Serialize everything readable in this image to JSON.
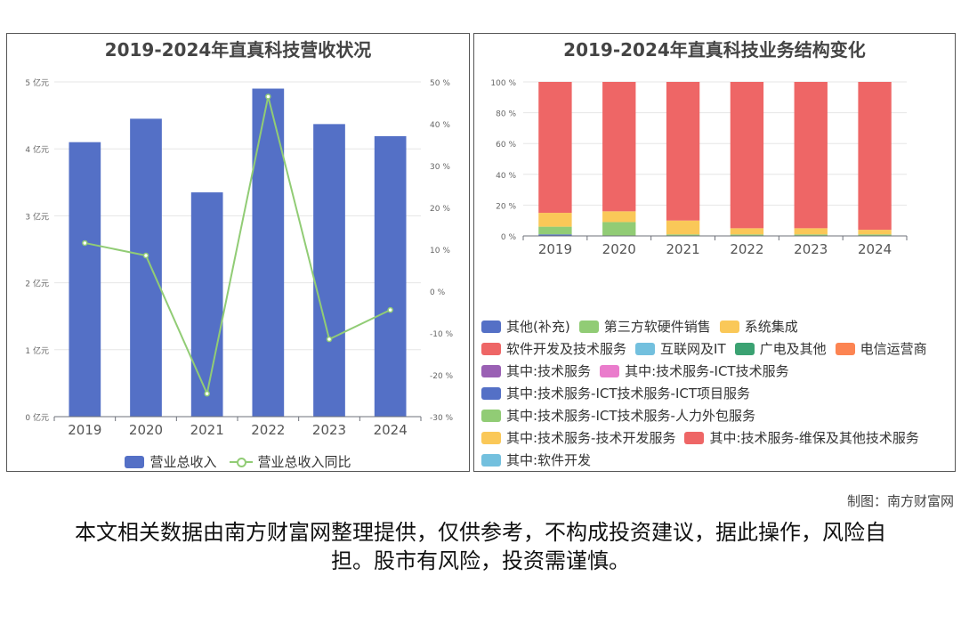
{
  "chart_data": [
    {
      "type": "bar",
      "title": "2019-2024年直真科技营收状况",
      "categories": [
        "2019",
        "2020",
        "2021",
        "2022",
        "2023",
        "2024"
      ],
      "series": [
        {
          "name": "营业总收入",
          "type": "bar",
          "color": "#5470c6",
          "values": [
            4.1,
            4.45,
            3.35,
            4.9,
            4.37,
            4.19
          ]
        },
        {
          "name": "营业总收入同比",
          "type": "line",
          "color": "#91cc75",
          "axis": "right",
          "values": [
            11.5,
            8.5,
            -24.5,
            46.5,
            -11.5,
            -4.5
          ]
        }
      ],
      "ylim_left": [
        0,
        5
      ],
      "yticks_left": [
        0,
        1,
        2,
        3,
        4,
        5
      ],
      "ytick_labels_left": [
        "0 亿元",
        "1 亿元",
        "2 亿元",
        "3 亿元",
        "4 亿元",
        "5 亿元"
      ],
      "ylim_right": [
        -30,
        50
      ],
      "yticks_right": [
        -30,
        -20,
        -10,
        0,
        10,
        20,
        30,
        40,
        50
      ],
      "ytick_labels_right": [
        "-30 %",
        "-20 %",
        "-10 %",
        "0 %",
        "10 %",
        "20 %",
        "30 %",
        "40 %",
        "50 %"
      ],
      "grid": true,
      "legend": "bottom"
    },
    {
      "type": "bar",
      "stacked": true,
      "title": "2019-2024年直真科技业务结构变化",
      "categories": [
        "2019",
        "2020",
        "2021",
        "2022",
        "2023",
        "2024"
      ],
      "series": [
        {
          "name": "其他(补充)",
          "color": "#5470c6",
          "values": [
            1,
            0,
            0,
            0,
            0,
            0
          ]
        },
        {
          "name": "第三方软硬件销售",
          "color": "#91cc75",
          "values": [
            5,
            9,
            1,
            1,
            1,
            1
          ]
        },
        {
          "name": "系统集成",
          "color": "#fac858",
          "values": [
            9,
            7,
            9,
            4,
            4,
            3
          ]
        },
        {
          "name": "软件开发及技术服务",
          "color": "#ee6666",
          "values": [
            85,
            84,
            90,
            95,
            95,
            96
          ]
        },
        {
          "name": "互联网及IT",
          "color": "#73c0de",
          "values": [
            0,
            0,
            0,
            0,
            0,
            0
          ]
        },
        {
          "name": "广电及其他",
          "color": "#3ba272",
          "values": [
            0,
            0,
            0,
            0,
            0,
            0
          ]
        },
        {
          "name": "电信运营商",
          "color": "#fc8452",
          "values": [
            0,
            0,
            0,
            0,
            0,
            0
          ]
        },
        {
          "name": "其中:技术服务",
          "color": "#9a60b4",
          "values": [
            0,
            0,
            0,
            0,
            0,
            0
          ]
        },
        {
          "name": "其中:技术服务-ICT技术服务",
          "color": "#ea7ccc",
          "values": [
            0,
            0,
            0,
            0,
            0,
            0
          ]
        },
        {
          "name": "其中:技术服务-ICT技术服务-ICT项目服务",
          "color": "#5470c6",
          "values": [
            0,
            0,
            0,
            0,
            0,
            0
          ]
        },
        {
          "name": "其中:技术服务-ICT技术服务-人力外包服务",
          "color": "#91cc75",
          "values": [
            0,
            0,
            0,
            0,
            0,
            0
          ]
        },
        {
          "name": "其中:技术服务-技术开发服务",
          "color": "#fac858",
          "values": [
            0,
            0,
            0,
            0,
            0,
            0
          ]
        },
        {
          "name": "其中:技术服务-维保及其他技术服务",
          "color": "#ee6666",
          "values": [
            0,
            0,
            0,
            0,
            0,
            0
          ]
        },
        {
          "name": "其中:软件开发",
          "color": "#73c0de",
          "values": [
            0,
            0,
            0,
            0,
            0,
            0
          ]
        }
      ],
      "ylim": [
        0,
        100
      ],
      "yticks": [
        0,
        20,
        40,
        60,
        80,
        100
      ],
      "ytick_labels": [
        "0 %",
        "20 %",
        "40 %",
        "60 %",
        "80 %",
        "100 %"
      ],
      "grid": true,
      "legend": "bottom"
    }
  ],
  "footer": {
    "credit": "制图：南方财富网",
    "disclaimer": "本文相关数据由南方财富网整理提供，仅供参考，不构成投资建议，据此操作，风险自担。股市有风险，投资需谨慎。"
  }
}
